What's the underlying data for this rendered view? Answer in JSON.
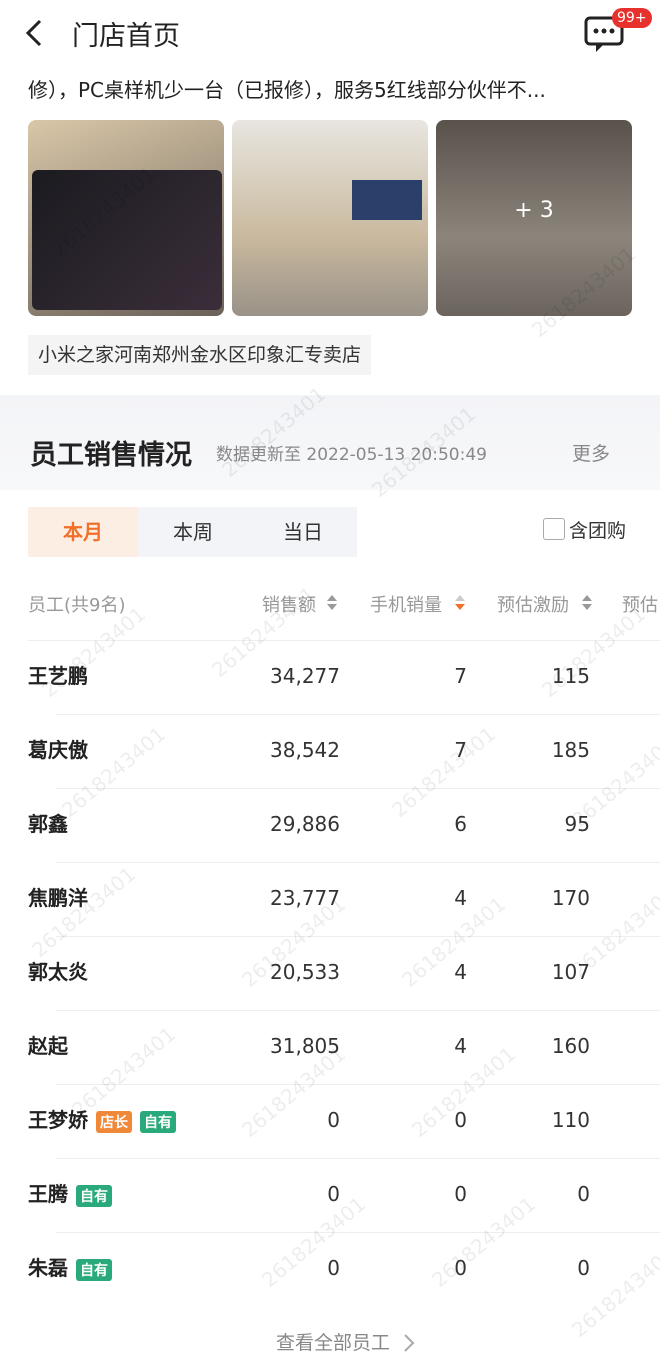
{
  "header": {
    "title": "门店首页",
    "badge": "99+"
  },
  "post": {
    "text": "修），PC桌样机少一台（已报修），服务5红线部分伙伴不...",
    "more_images": "+ 3",
    "store": "小米之家河南郑州金水区印象汇专卖店"
  },
  "section": {
    "title": "员工销售情况",
    "updated": "数据更新至 2022-05-13 20:50:49",
    "more": "更多"
  },
  "tabs": [
    "本月",
    "本周",
    "当日"
  ],
  "filter": "含团购",
  "table": {
    "columns": [
      "员工(共9名)",
      "销售额",
      "手机销量",
      "预估激励",
      "预估"
    ],
    "rows": [
      {
        "name": "王艺鹏",
        "tags": [],
        "values": [
          "34,277",
          "7",
          "115"
        ]
      },
      {
        "name": "葛庆傲",
        "tags": [],
        "values": [
          "38,542",
          "7",
          "185"
        ]
      },
      {
        "name": "郭鑫",
        "tags": [],
        "values": [
          "29,886",
          "6",
          "95"
        ]
      },
      {
        "name": "焦鹏洋",
        "tags": [],
        "values": [
          "23,777",
          "4",
          "170"
        ]
      },
      {
        "name": "郭太炎",
        "tags": [],
        "values": [
          "20,533",
          "4",
          "107"
        ]
      },
      {
        "name": "赵起",
        "tags": [],
        "values": [
          "31,805",
          "4",
          "160"
        ]
      },
      {
        "name": "王梦娇",
        "tags": [
          {
            "label": "店长",
            "color": "#f0883a"
          },
          {
            "label": "自有",
            "color": "#2aaa7a"
          }
        ],
        "values": [
          "0",
          "0",
          "110"
        ]
      },
      {
        "name": "王腾",
        "tags": [
          {
            "label": "自有",
            "color": "#2aaa7a"
          }
        ],
        "values": [
          "0",
          "0",
          "0"
        ]
      },
      {
        "name": "朱磊",
        "tags": [
          {
            "label": "自有",
            "color": "#2aaa7a"
          }
        ],
        "values": [
          "0",
          "0",
          "0"
        ]
      }
    ]
  },
  "footer": "查看全部员工",
  "watermark": "2618243401"
}
